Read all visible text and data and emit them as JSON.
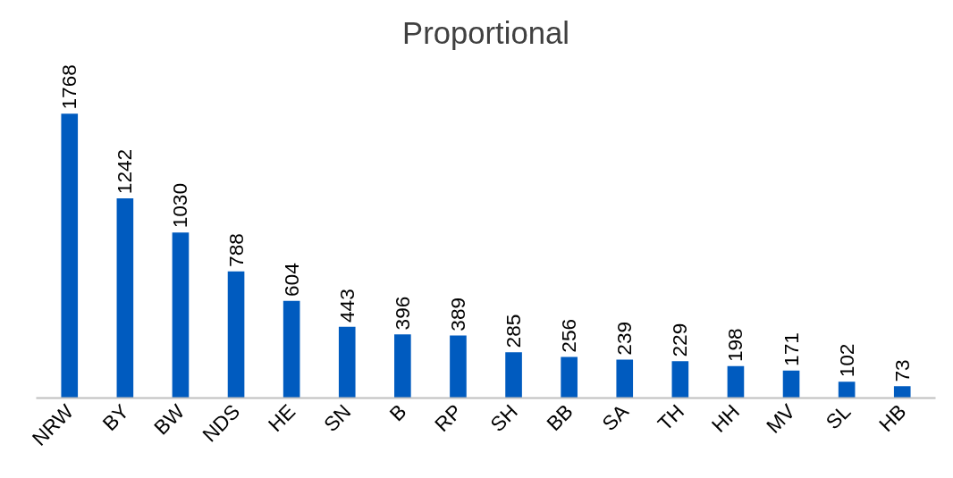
{
  "chart_data": {
    "type": "bar",
    "title": "Proportional",
    "categories": [
      "NRW",
      "BY",
      "BW",
      "NDS",
      "HE",
      "SN",
      "B",
      "RP",
      "SH",
      "BB",
      "SA",
      "TH",
      "HH",
      "MV",
      "SL",
      "HB"
    ],
    "values": [
      1768,
      1242,
      1030,
      788,
      604,
      443,
      396,
      389,
      285,
      256,
      239,
      229,
      198,
      171,
      102,
      73
    ],
    "color": "#005bbf",
    "data_labels": true,
    "grid": false,
    "tick_labels": "x"
  }
}
